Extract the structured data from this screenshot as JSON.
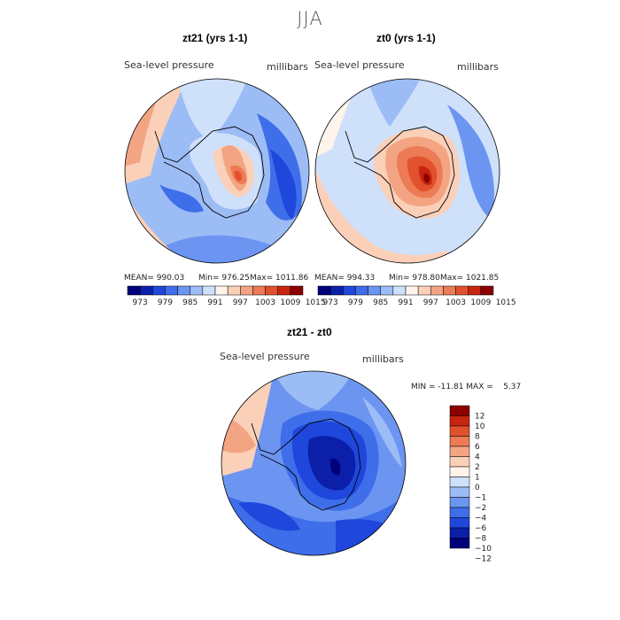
{
  "season": "JJA",
  "colors": {
    "scale14": [
      "#00007a",
      "#0b1fa8",
      "#1f47dc",
      "#3f6eea",
      "#6c95f1",
      "#9cbcf6",
      "#cfe0fb",
      "#fff4ec",
      "#fbd0b8",
      "#f3a583",
      "#ec7b56",
      "#e2512d",
      "#c7250f",
      "#8c0000"
    ],
    "diff": [
      "#00007a",
      "#0b1fa8",
      "#1f47dc",
      "#3f6eea",
      "#6c95f1",
      "#9cbcf6",
      "#cfe0fb",
      "#fff4ec",
      "#fbd0b8",
      "#f3a583",
      "#ec7b56",
      "#e2512d",
      "#c7250f",
      "#8c0000"
    ]
  },
  "panel1": {
    "title": "zt21 (yrs 1-1)",
    "var_label": "Sea-level pressure",
    "units": "millibars",
    "mean": "MEAN= 990.03",
    "min": "Min= 976.25",
    "max": "Max= 1011.86"
  },
  "panel2": {
    "title": "zt0 (yrs 1-1)",
    "var_label": "Sea-level pressure",
    "units": "millibars",
    "mean": "MEAN= 994.33",
    "min": "Min= 978.80",
    "max": "Max= 1021.85"
  },
  "panel3": {
    "title": "zt21 - zt0",
    "var_label": "Sea-level pressure",
    "units": "millibars",
    "minmax": "MIN = -11.81 MAX =    5.37"
  },
  "chart_data": [
    {
      "type": "heatmap",
      "projection": "south-polar-stereographic",
      "title": "zt21 (yrs 1-1)",
      "variable": "Sea-level pressure",
      "units": "millibars",
      "mean": 990.03,
      "min": 976.25,
      "max": 1011.86,
      "colorbar_ticks": [
        973,
        979,
        985,
        991,
        997,
        1003,
        1009,
        1015
      ]
    },
    {
      "type": "heatmap",
      "projection": "south-polar-stereographic",
      "title": "zt0 (yrs 1-1)",
      "variable": "Sea-level pressure",
      "units": "millibars",
      "mean": 994.33,
      "min": 978.8,
      "max": 1021.85,
      "colorbar_ticks": [
        973,
        979,
        985,
        991,
        997,
        1003,
        1009,
        1015
      ]
    },
    {
      "type": "heatmap",
      "projection": "south-polar-stereographic",
      "title": "zt21 - zt0",
      "variable": "Sea-level pressure",
      "units": "millibars",
      "min": -11.81,
      "max": 5.37,
      "colorbar_ticks": [
        "12",
        "10",
        "8",
        "6",
        "4",
        "2",
        "1",
        "0",
        "−1",
        "−2",
        "−4",
        "−6",
        "−8",
        "−10",
        "−12"
      ]
    }
  ]
}
